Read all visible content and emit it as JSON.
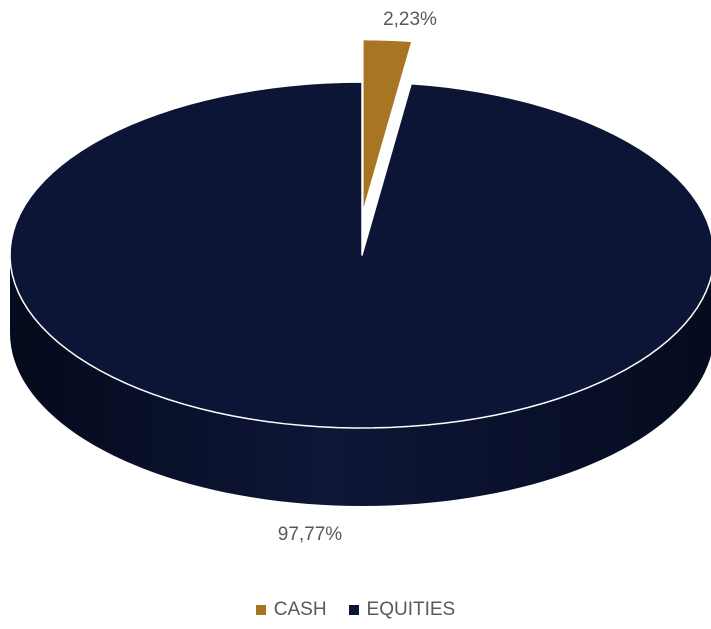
{
  "chart_data": {
    "type": "pie",
    "variant": "3d-exploded",
    "title": "",
    "slices": [
      {
        "label": "CASH",
        "value": 2.23,
        "display": "2,23%",
        "color": "#A87523"
      },
      {
        "label": "EQUITIES",
        "value": 97.77,
        "display": "97,77%",
        "color": "#0C1535"
      }
    ],
    "legend": {
      "position": "bottom",
      "entries": [
        "CASH",
        "EQUITIES"
      ]
    }
  }
}
